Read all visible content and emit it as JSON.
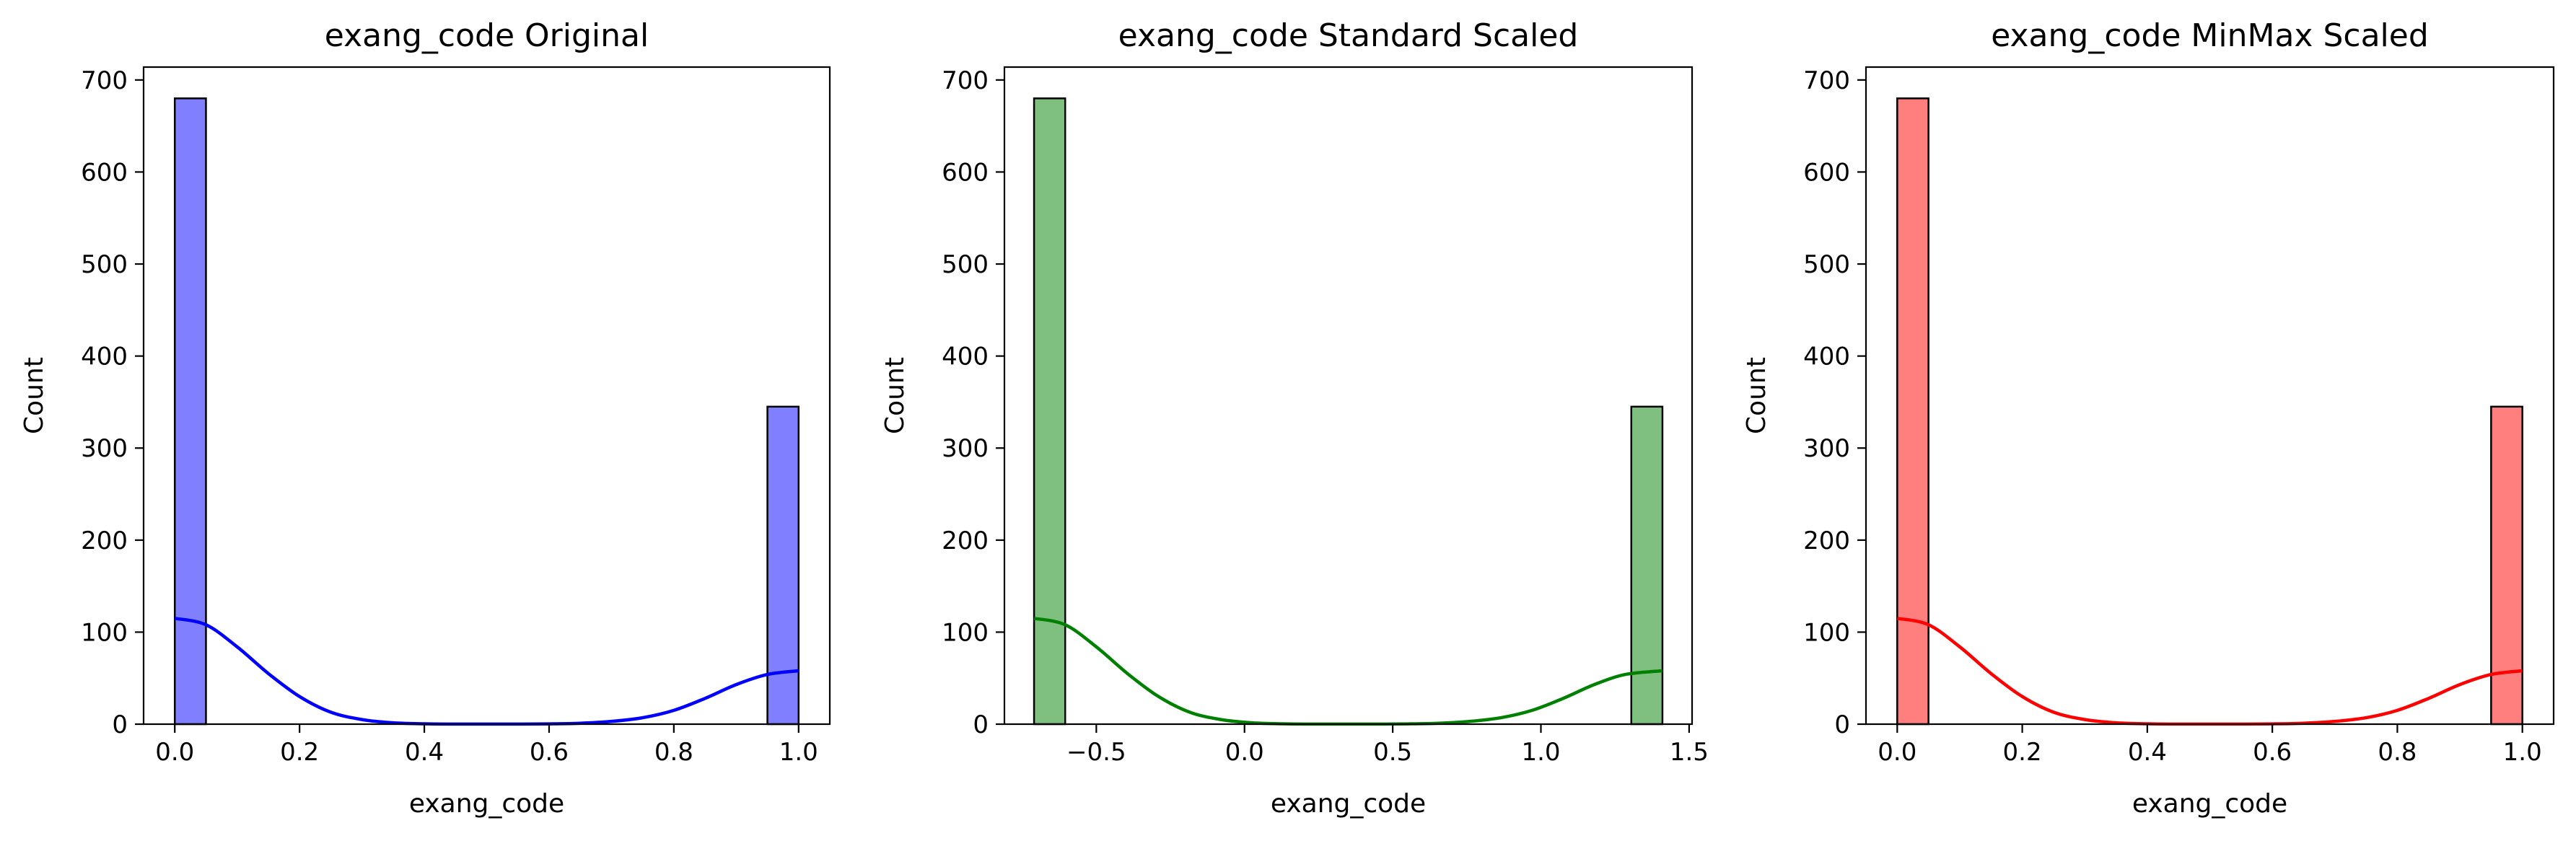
{
  "chart_data": [
    {
      "type": "bar",
      "subtype": "histogram",
      "title": "exang_code Original",
      "xlabel": "exang_code",
      "ylabel": "Count",
      "color": "#0000ff",
      "bar_opacity": 0.5,
      "xlim": [
        -0.05,
        1.05
      ],
      "ylim": [
        0,
        714
      ],
      "xticks": [
        0.0,
        0.2,
        0.4,
        0.6,
        0.8,
        1.0
      ],
      "xtick_labels": [
        "0.0",
        "0.2",
        "0.4",
        "0.6",
        "0.8",
        "1.0"
      ],
      "yticks": [
        0,
        100,
        200,
        300,
        400,
        500,
        600,
        700
      ],
      "ytick_labels": [
        "0",
        "100",
        "200",
        "300",
        "400",
        "500",
        "600",
        "700"
      ],
      "bins": [
        {
          "x0": 0.0,
          "x1": 0.05,
          "count": 680
        },
        {
          "x0": 0.95,
          "x1": 1.0,
          "count": 345
        }
      ],
      "kde": {
        "x": [
          0.0,
          0.05,
          0.1,
          0.15,
          0.2,
          0.25,
          0.3,
          0.35,
          0.4,
          0.45,
          0.5,
          0.55,
          0.6,
          0.65,
          0.7,
          0.75,
          0.8,
          0.85,
          0.9,
          0.95,
          1.0
        ],
        "y": [
          115,
          108,
          84,
          55,
          30,
          13,
          5,
          1.5,
          0.4,
          0.1,
          0.05,
          0.1,
          0.3,
          1,
          3,
          7,
          15,
          28,
          43,
          54,
          58
        ]
      },
      "grid": false
    },
    {
      "type": "bar",
      "subtype": "histogram",
      "title": "exang_code Standard Scaled",
      "xlabel": "exang_code",
      "ylabel": "Count",
      "color": "#008000",
      "bar_opacity": 0.5,
      "xlim": [
        -0.81,
        1.51
      ],
      "ylim": [
        0,
        714
      ],
      "xticks": [
        -0.5,
        0.0,
        0.5,
        1.0,
        1.5
      ],
      "xtick_labels": [
        "−0.5",
        "0.0",
        "0.5",
        "1.0",
        "1.5"
      ],
      "yticks": [
        0,
        100,
        200,
        300,
        400,
        500,
        600,
        700
      ],
      "ytick_labels": [
        "0",
        "100",
        "200",
        "300",
        "400",
        "500",
        "600",
        "700"
      ],
      "bins": [
        {
          "x0": -0.71,
          "x1": -0.605,
          "count": 680
        },
        {
          "x0": 1.305,
          "x1": 1.41,
          "count": 345
        }
      ],
      "kde": {
        "x": [
          -0.71,
          -0.605,
          -0.5,
          -0.395,
          -0.29,
          -0.185,
          -0.08,
          0.025,
          0.13,
          0.235,
          0.34,
          0.445,
          0.55,
          0.655,
          0.76,
          0.865,
          0.97,
          1.075,
          1.18,
          1.285,
          1.41
        ],
        "y": [
          115,
          108,
          84,
          55,
          30,
          13,
          5,
          1.5,
          0.4,
          0.1,
          0.05,
          0.1,
          0.3,
          1,
          3,
          7,
          15,
          28,
          43,
          54,
          58
        ]
      },
      "grid": false
    },
    {
      "type": "bar",
      "subtype": "histogram",
      "title": "exang_code MinMax Scaled",
      "xlabel": "exang_code",
      "ylabel": "Count",
      "color": "#ff0000",
      "bar_opacity": 0.5,
      "xlim": [
        -0.05,
        1.05
      ],
      "ylim": [
        0,
        714
      ],
      "xticks": [
        0.0,
        0.2,
        0.4,
        0.6,
        0.8,
        1.0
      ],
      "xtick_labels": [
        "0.0",
        "0.2",
        "0.4",
        "0.6",
        "0.8",
        "1.0"
      ],
      "yticks": [
        0,
        100,
        200,
        300,
        400,
        500,
        600,
        700
      ],
      "ytick_labels": [
        "0",
        "100",
        "200",
        "300",
        "400",
        "500",
        "600",
        "700"
      ],
      "bins": [
        {
          "x0": 0.0,
          "x1": 0.05,
          "count": 680
        },
        {
          "x0": 0.95,
          "x1": 1.0,
          "count": 345
        }
      ],
      "kde": {
        "x": [
          0.0,
          0.05,
          0.1,
          0.15,
          0.2,
          0.25,
          0.3,
          0.35,
          0.4,
          0.45,
          0.5,
          0.55,
          0.6,
          0.65,
          0.7,
          0.75,
          0.8,
          0.85,
          0.9,
          0.95,
          1.0
        ],
        "y": [
          115,
          108,
          84,
          55,
          30,
          13,
          5,
          1.5,
          0.4,
          0.1,
          0.05,
          0.1,
          0.3,
          1,
          3,
          7,
          15,
          28,
          43,
          54,
          58
        ]
      },
      "grid": false
    }
  ]
}
